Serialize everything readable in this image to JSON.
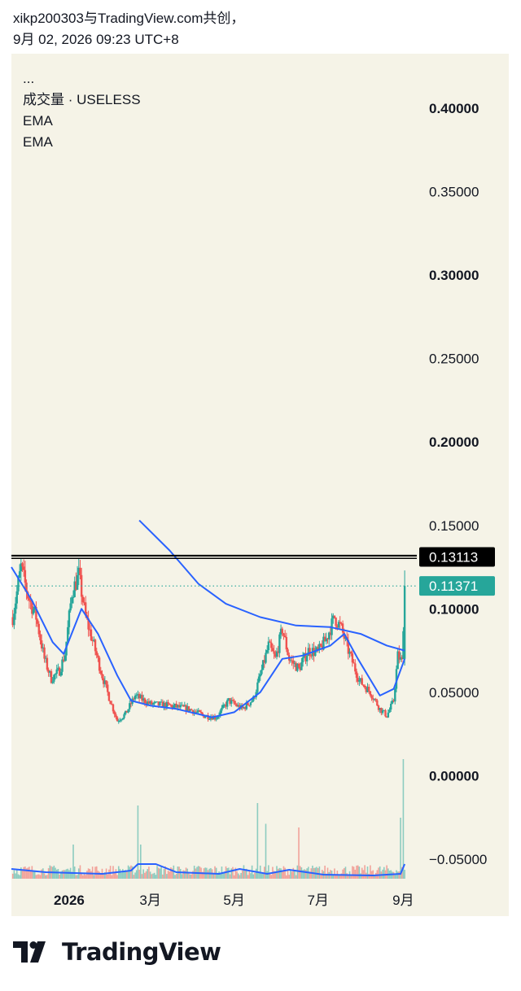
{
  "header": {
    "line1": "xikp200303与TradingView.com共创，",
    "line2": "9月 02, 2026 09:23 UTC+8"
  },
  "legend": {
    "more": "...",
    "volume_label": "成交量 · USELESS",
    "ema_1": "EMA",
    "ema_2": "EMA"
  },
  "brand": {
    "name": "TradingView",
    "icon": "tradingview-logo-icon"
  },
  "colors": {
    "background": "#f5f3e7",
    "up": "#26a69a",
    "down": "#ef5350",
    "ema": "#2962ff",
    "resistance": "#000000",
    "last_price_badge": "#26a69a",
    "level_badge": "#000000"
  },
  "chart_data": {
    "type": "candlestick",
    "symbol": "USELESS",
    "y_axis": {
      "ticks": [
        "0.40000",
        "0.35000",
        "0.30000",
        "0.25000",
        "0.20000",
        "0.15000",
        "0.10000",
        "0.05000",
        "0.00000",
        "−0.05000"
      ],
      "tick_values": [
        0.4,
        0.35,
        0.3,
        0.25,
        0.2,
        0.15,
        0.1,
        0.05,
        0.0,
        -0.05
      ],
      "range": [
        -0.0637,
        0.4327
      ]
    },
    "x_axis": {
      "labels": [
        "2026",
        "3月",
        "5月",
        "7月",
        "9月"
      ],
      "label_dates": [
        "2026-01-01",
        "2026-03-01",
        "2026-05-01",
        "2026-07-01",
        "2026-09-01"
      ],
      "range": [
        "2025-11-20",
        "2026-09-12"
      ]
    },
    "resistance_line": {
      "value": 0.13113,
      "label": "0.13113"
    },
    "last_price": {
      "value": 0.11371,
      "label": "0.11371",
      "style": "dotted"
    },
    "price_waypoints": [
      {
        "x": "2025-11-21",
        "y": 0.095
      },
      {
        "x": "2025-11-27",
        "y": 0.125
      },
      {
        "x": "2025-12-02",
        "y": 0.108
      },
      {
        "x": "2025-12-08",
        "y": 0.095
      },
      {
        "x": "2025-12-14",
        "y": 0.07
      },
      {
        "x": "2025-12-19",
        "y": 0.058
      },
      {
        "x": "2025-12-25",
        "y": 0.063
      },
      {
        "x": "2025-12-29",
        "y": 0.073
      },
      {
        "x": "2026-01-03",
        "y": 0.11
      },
      {
        "x": "2026-01-08",
        "y": 0.12
      },
      {
        "x": "2026-01-13",
        "y": 0.095
      },
      {
        "x": "2026-01-19",
        "y": 0.078
      },
      {
        "x": "2026-01-25",
        "y": 0.06
      },
      {
        "x": "2026-01-30",
        "y": 0.047
      },
      {
        "x": "2026-02-05",
        "y": 0.033
      },
      {
        "x": "2026-02-11",
        "y": 0.037
      },
      {
        "x": "2026-02-18",
        "y": 0.048
      },
      {
        "x": "2026-03-01",
        "y": 0.043
      },
      {
        "x": "2026-03-15",
        "y": 0.042
      },
      {
        "x": "2026-03-29",
        "y": 0.04
      },
      {
        "x": "2026-04-09",
        "y": 0.036
      },
      {
        "x": "2026-04-18",
        "y": 0.035
      },
      {
        "x": "2026-04-27",
        "y": 0.045
      },
      {
        "x": "2026-05-07",
        "y": 0.04
      },
      {
        "x": "2026-05-15",
        "y": 0.046
      },
      {
        "x": "2026-05-21",
        "y": 0.063
      },
      {
        "x": "2026-05-26",
        "y": 0.078
      },
      {
        "x": "2026-05-31",
        "y": 0.07
      },
      {
        "x": "2026-06-05",
        "y": 0.088
      },
      {
        "x": "2026-06-10",
        "y": 0.07
      },
      {
        "x": "2026-06-17",
        "y": 0.064
      },
      {
        "x": "2026-06-24",
        "y": 0.075
      },
      {
        "x": "2026-07-01",
        "y": 0.074
      },
      {
        "x": "2026-07-07",
        "y": 0.082
      },
      {
        "x": "2026-07-13",
        "y": 0.095
      },
      {
        "x": "2026-07-18",
        "y": 0.088
      },
      {
        "x": "2026-07-23",
        "y": 0.075
      },
      {
        "x": "2026-07-31",
        "y": 0.057
      },
      {
        "x": "2026-08-08",
        "y": 0.05
      },
      {
        "x": "2026-08-15",
        "y": 0.04
      },
      {
        "x": "2026-08-20",
        "y": 0.036
      },
      {
        "x": "2026-08-25",
        "y": 0.045
      },
      {
        "x": "2026-08-28",
        "y": 0.072
      },
      {
        "x": "2026-08-31",
        "y": 0.068
      },
      {
        "x": "2026-09-02",
        "y": 0.114
      }
    ],
    "ema_fast": [
      {
        "x": "2025-11-20",
        "y": 0.125
      },
      {
        "x": "2025-12-05",
        "y": 0.105
      },
      {
        "x": "2025-12-20",
        "y": 0.08
      },
      {
        "x": "2025-12-28",
        "y": 0.073
      },
      {
        "x": "2026-01-10",
        "y": 0.1
      },
      {
        "x": "2026-01-22",
        "y": 0.085
      },
      {
        "x": "2026-02-05",
        "y": 0.06
      },
      {
        "x": "2026-02-15",
        "y": 0.045
      },
      {
        "x": "2026-03-01",
        "y": 0.042
      },
      {
        "x": "2026-03-20",
        "y": 0.04
      },
      {
        "x": "2026-04-15",
        "y": 0.035
      },
      {
        "x": "2026-05-01",
        "y": 0.038
      },
      {
        "x": "2026-05-20",
        "y": 0.05
      },
      {
        "x": "2026-06-05",
        "y": 0.07
      },
      {
        "x": "2026-06-20",
        "y": 0.072
      },
      {
        "x": "2026-07-10",
        "y": 0.078
      },
      {
        "x": "2026-07-20",
        "y": 0.085
      },
      {
        "x": "2026-07-30",
        "y": 0.07
      },
      {
        "x": "2026-08-15",
        "y": 0.048
      },
      {
        "x": "2026-08-25",
        "y": 0.052
      },
      {
        "x": "2026-09-02",
        "y": 0.07
      }
    ],
    "ema_slow": [
      {
        "x": "2026-02-21",
        "y": 0.153
      },
      {
        "x": "2026-03-15",
        "y": 0.135
      },
      {
        "x": "2026-04-05",
        "y": 0.115
      },
      {
        "x": "2026-04-25",
        "y": 0.103
      },
      {
        "x": "2026-05-20",
        "y": 0.095
      },
      {
        "x": "2026-06-15",
        "y": 0.09
      },
      {
        "x": "2026-07-10",
        "y": 0.089
      },
      {
        "x": "2026-08-01",
        "y": 0.085
      },
      {
        "x": "2026-08-20",
        "y": 0.078
      },
      {
        "x": "2026-09-02",
        "y": 0.075
      }
    ],
    "volume_spikes": [
      {
        "x": "2026-02-20",
        "rel": 0.6
      },
      {
        "x": "2026-02-22",
        "rel": 0.28
      },
      {
        "x": "2026-05-18",
        "rel": 0.62
      },
      {
        "x": "2026-06-17",
        "rel": 0.42
      },
      {
        "x": "2026-05-24",
        "rel": 0.45
      },
      {
        "x": "2026-08-30",
        "rel": 0.5
      },
      {
        "x": "2026-09-01",
        "rel": 0.98
      },
      {
        "x": "2026-01-04",
        "rel": 0.28
      }
    ],
    "volume_ema": [
      {
        "x": "2025-11-20",
        "y": 0.012
      },
      {
        "x": "2025-12-15",
        "y": 0.008
      },
      {
        "x": "2026-01-25",
        "y": 0.006
      },
      {
        "x": "2026-02-15",
        "y": 0.01
      },
      {
        "x": "2026-02-20",
        "y": 0.018
      },
      {
        "x": "2026-03-05",
        "y": 0.018
      },
      {
        "x": "2026-03-20",
        "y": 0.008
      },
      {
        "x": "2026-04-20",
        "y": 0.006
      },
      {
        "x": "2026-05-05",
        "y": 0.012
      },
      {
        "x": "2026-05-25",
        "y": 0.006
      },
      {
        "x": "2026-06-10",
        "y": 0.011
      },
      {
        "x": "2026-07-05",
        "y": 0.005
      },
      {
        "x": "2026-08-10",
        "y": 0.004
      },
      {
        "x": "2026-08-30",
        "y": 0.006
      },
      {
        "x": "2026-09-02",
        "y": 0.018
      }
    ]
  }
}
